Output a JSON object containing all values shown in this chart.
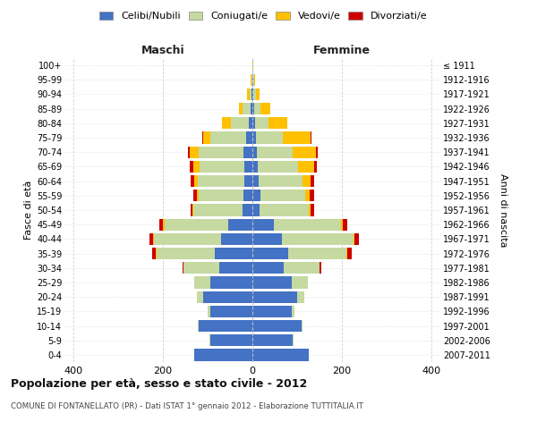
{
  "age_groups_bottom_to_top": [
    "0-4",
    "5-9",
    "10-14",
    "15-19",
    "20-24",
    "25-29",
    "30-34",
    "35-39",
    "40-44",
    "45-49",
    "50-54",
    "55-59",
    "60-64",
    "65-69",
    "70-74",
    "75-79",
    "80-84",
    "85-89",
    "90-94",
    "95-99",
    "100+"
  ],
  "birth_years_bottom_to_top": [
    "2007-2011",
    "2002-2006",
    "1997-2001",
    "1992-1996",
    "1987-1991",
    "1982-1986",
    "1977-1981",
    "1972-1976",
    "1967-1971",
    "1962-1966",
    "1957-1961",
    "1952-1956",
    "1947-1951",
    "1942-1946",
    "1937-1941",
    "1932-1936",
    "1927-1931",
    "1922-1926",
    "1917-1921",
    "1912-1916",
    "≤ 1911"
  ],
  "males": {
    "celibi": [
      130,
      95,
      120,
      95,
      110,
      95,
      75,
      85,
      70,
      55,
      22,
      20,
      18,
      18,
      20,
      15,
      8,
      5,
      2,
      1,
      0
    ],
    "coniugati": [
      0,
      1,
      3,
      5,
      15,
      35,
      80,
      130,
      150,
      142,
      110,
      100,
      105,
      100,
      100,
      80,
      40,
      18,
      5,
      2,
      0
    ],
    "vedovi": [
      0,
      0,
      0,
      0,
      0,
      0,
      0,
      1,
      2,
      3,
      3,
      5,
      8,
      15,
      20,
      15,
      20,
      8,
      5,
      2,
      0
    ],
    "divorziati": [
      0,
      0,
      0,
      0,
      0,
      0,
      2,
      8,
      8,
      8,
      3,
      8,
      8,
      8,
      5,
      2,
      0,
      0,
      0,
      0,
      0
    ]
  },
  "females": {
    "nubili": [
      125,
      90,
      110,
      88,
      100,
      88,
      70,
      80,
      65,
      48,
      16,
      18,
      14,
      12,
      10,
      8,
      5,
      3,
      2,
      1,
      0
    ],
    "coniugate": [
      0,
      1,
      2,
      5,
      15,
      35,
      80,
      130,
      160,
      150,
      110,
      100,
      98,
      90,
      80,
      60,
      30,
      15,
      5,
      2,
      0
    ],
    "vedove": [
      0,
      0,
      0,
      0,
      0,
      0,
      0,
      1,
      2,
      3,
      4,
      10,
      18,
      36,
      52,
      62,
      42,
      22,
      8,
      3,
      1
    ],
    "divorziate": [
      0,
      0,
      0,
      0,
      0,
      0,
      3,
      10,
      10,
      10,
      8,
      10,
      8,
      5,
      3,
      2,
      0,
      0,
      0,
      0,
      0
    ]
  },
  "colors": {
    "celibi": "#4472c4",
    "coniugati": "#c5d9a0",
    "vedovi": "#ffc000",
    "divorziati": "#cc0000"
  },
  "xlim": 420,
  "title": "Popolazione per età, sesso e stato civile - 2012",
  "subtitle": "COMUNE DI FONTANELLATO (PR) - Dati ISTAT 1° gennaio 2012 - Elaborazione TUTTITALIA.IT",
  "ylabel_left": "Fasce di età",
  "ylabel_right": "Anni di nascita",
  "xlabel_left": "Maschi",
  "xlabel_right": "Femmine",
  "bg_color": "#ffffff",
  "grid_color": "#cccccc",
  "legend_labels": [
    "Celibi/Nubili",
    "Coniugati/e",
    "Vedovi/e",
    "Divorziati/e"
  ]
}
